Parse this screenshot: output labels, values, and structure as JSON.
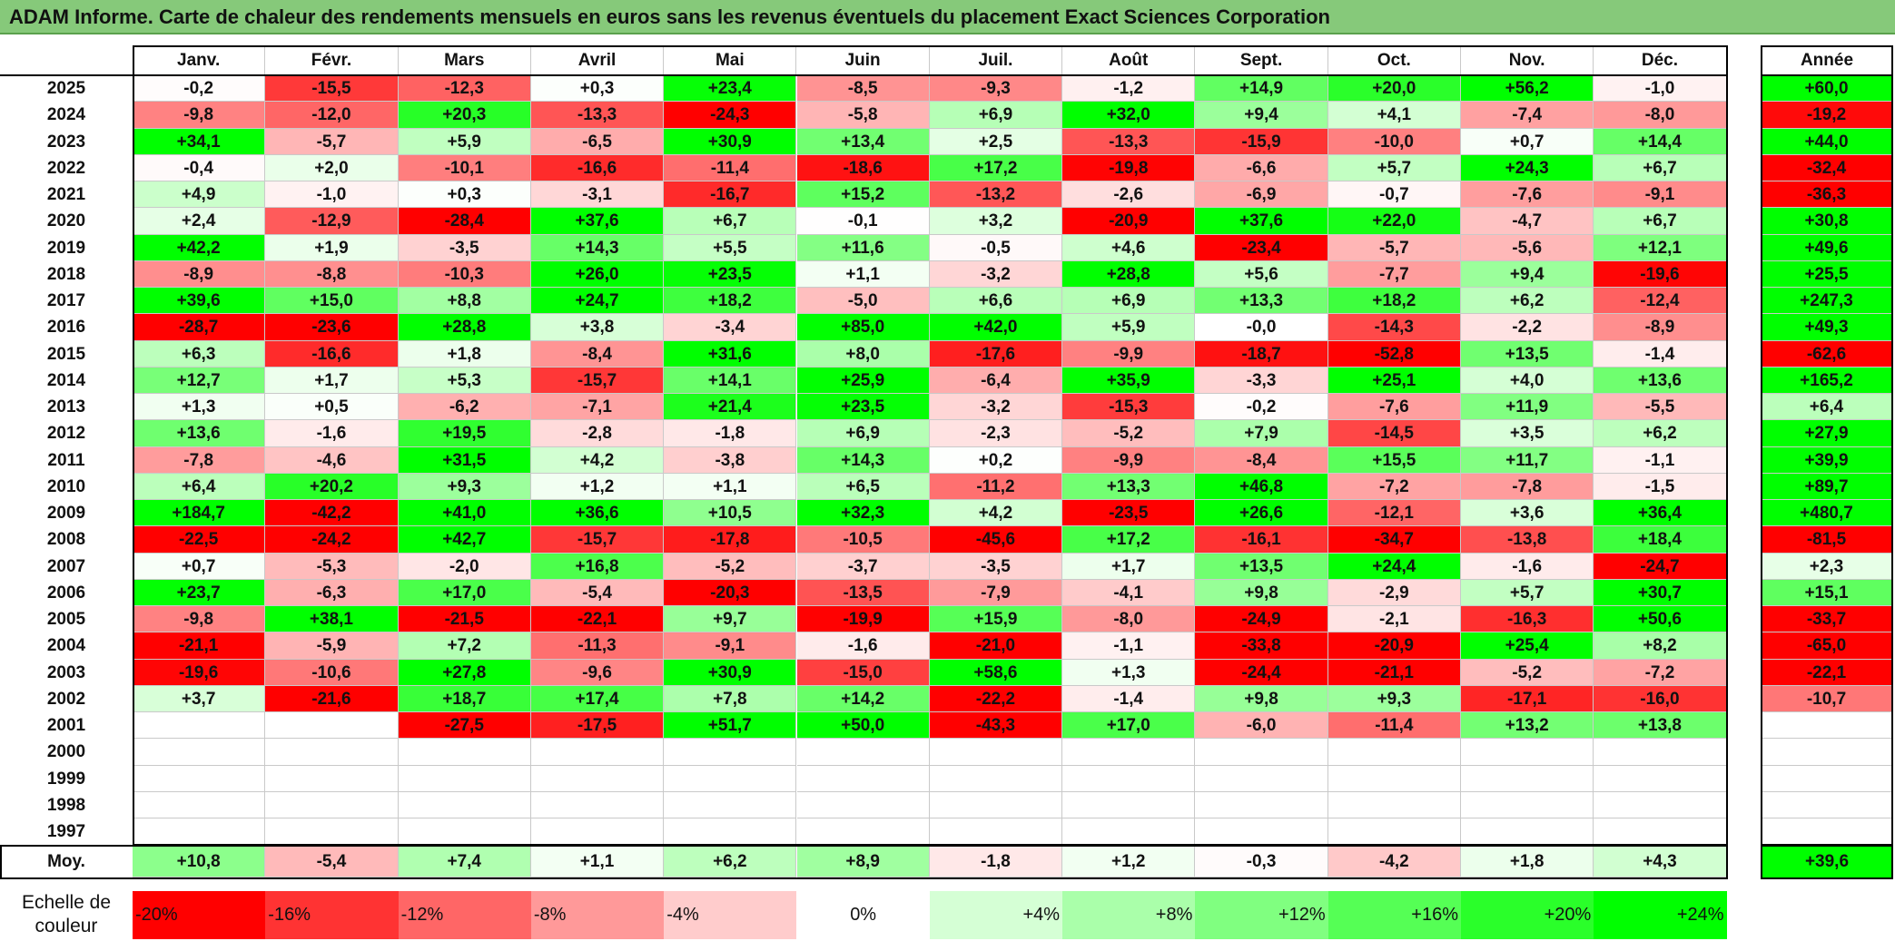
{
  "title": "ADAM Informe. Carte de chaleur des rendements mensuels en euros sans les revenus éventuels du placement Exact Sciences Corporation",
  "months": [
    "Janv.",
    "Févr.",
    "Mars",
    "Avril",
    "Mai",
    "Juin",
    "Juil.",
    "Août",
    "Sept.",
    "Oct.",
    "Nov.",
    "Déc."
  ],
  "annual_header": "Année",
  "average_label": "Moy.",
  "scale_label_line1": "Echelle de",
  "scale_label_line2": "couleur",
  "colors": {
    "negative_max": "#ff0000",
    "positive_max": "#00ff00",
    "zero": "#ffffff",
    "title_bg": "#86c97a"
  },
  "chart_data": {
    "type": "heatmap",
    "title": "ADAM Informe. Carte de chaleur des rendements mensuels en euros sans les revenus éventuels du placement Exact Sciences Corporation",
    "unit": "%",
    "color_range": [
      -20,
      24
    ],
    "rows": [
      {
        "year": "2025",
        "values": [
          "-0,2",
          "-15,5",
          "-12,3",
          "+0,3",
          "+23,4",
          "-8,5",
          "-9,3",
          "-1,2",
          "+14,9",
          "+20,0",
          "+56,2",
          "-1,0"
        ],
        "annual": "+60,0"
      },
      {
        "year": "2024",
        "values": [
          "-9,8",
          "-12,0",
          "+20,3",
          "-13,3",
          "-24,3",
          "-5,8",
          "+6,9",
          "+32,0",
          "+9,4",
          "+4,1",
          "-7,4",
          "-8,0"
        ],
        "annual": "-19,2"
      },
      {
        "year": "2023",
        "values": [
          "+34,1",
          "-5,7",
          "+5,9",
          "-6,5",
          "+30,9",
          "+13,4",
          "+2,5",
          "-13,3",
          "-15,9",
          "-10,0",
          "+0,7",
          "+14,4"
        ],
        "annual": "+44,0"
      },
      {
        "year": "2022",
        "values": [
          "-0,4",
          "+2,0",
          "-10,1",
          "-16,6",
          "-11,4",
          "-18,6",
          "+17,2",
          "-19,8",
          "-6,6",
          "+5,7",
          "+24,3",
          "+6,7"
        ],
        "annual": "-32,4"
      },
      {
        "year": "2021",
        "values": [
          "+4,9",
          "-1,0",
          "+0,3",
          "-3,1",
          "-16,7",
          "+15,2",
          "-13,2",
          "-2,6",
          "-6,9",
          "-0,7",
          "-7,6",
          "-9,1"
        ],
        "annual": "-36,3"
      },
      {
        "year": "2020",
        "values": [
          "+2,4",
          "-12,9",
          "-28,4",
          "+37,6",
          "+6,7",
          "-0,1",
          "+3,2",
          "-20,9",
          "+37,6",
          "+22,0",
          "-4,7",
          "+6,7"
        ],
        "annual": "+30,8"
      },
      {
        "year": "2019",
        "values": [
          "+42,2",
          "+1,9",
          "-3,5",
          "+14,3",
          "+5,5",
          "+11,6",
          "-0,5",
          "+4,6",
          "-23,4",
          "-5,7",
          "-5,6",
          "+12,1"
        ],
        "annual": "+49,6"
      },
      {
        "year": "2018",
        "values": [
          "-8,9",
          "-8,8",
          "-10,3",
          "+26,0",
          "+23,5",
          "+1,1",
          "-3,2",
          "+28,8",
          "+5,6",
          "-7,7",
          "+9,4",
          "-19,6"
        ],
        "annual": "+25,5"
      },
      {
        "year": "2017",
        "values": [
          "+39,6",
          "+15,0",
          "+8,8",
          "+24,7",
          "+18,2",
          "-5,0",
          "+6,6",
          "+6,9",
          "+13,3",
          "+18,2",
          "+6,2",
          "-12,4"
        ],
        "annual": "+247,3"
      },
      {
        "year": "2016",
        "values": [
          "-28,7",
          "-23,6",
          "+28,8",
          "+3,8",
          "-3,4",
          "+85,0",
          "+42,0",
          "+5,9",
          "-0,0",
          "-14,3",
          "-2,2",
          "-8,9"
        ],
        "annual": "+49,3"
      },
      {
        "year": "2015",
        "values": [
          "+6,3",
          "-16,6",
          "+1,8",
          "-8,4",
          "+31,6",
          "+8,0",
          "-17,6",
          "-9,9",
          "-18,7",
          "-52,8",
          "+13,5",
          "-1,4"
        ],
        "annual": "-62,6"
      },
      {
        "year": "2014",
        "values": [
          "+12,7",
          "+1,7",
          "+5,3",
          "-15,7",
          "+14,1",
          "+25,9",
          "-6,4",
          "+35,9",
          "-3,3",
          "+25,1",
          "+4,0",
          "+13,6"
        ],
        "annual": "+165,2"
      },
      {
        "year": "2013",
        "values": [
          "+1,3",
          "+0,5",
          "-6,2",
          "-7,1",
          "+21,4",
          "+23,5",
          "-3,2",
          "-15,3",
          "-0,2",
          "-7,6",
          "+11,9",
          "-5,5"
        ],
        "annual": "+6,4"
      },
      {
        "year": "2012",
        "values": [
          "+13,6",
          "-1,6",
          "+19,5",
          "-2,8",
          "-1,8",
          "+6,9",
          "-2,3",
          "-5,2",
          "+7,9",
          "-14,5",
          "+3,5",
          "+6,2"
        ],
        "annual": "+27,9"
      },
      {
        "year": "2011",
        "values": [
          "-7,8",
          "-4,6",
          "+31,5",
          "+4,2",
          "-3,8",
          "+14,3",
          "+0,2",
          "-9,9",
          "-8,4",
          "+15,5",
          "+11,7",
          "-1,1"
        ],
        "annual": "+39,9"
      },
      {
        "year": "2010",
        "values": [
          "+6,4",
          "+20,2",
          "+9,3",
          "+1,2",
          "+1,1",
          "+6,5",
          "-11,2",
          "+13,3",
          "+46,8",
          "-7,2",
          "-7,8",
          "-1,5"
        ],
        "annual": "+89,7"
      },
      {
        "year": "2009",
        "values": [
          "+184,7",
          "-42,2",
          "+41,0",
          "+36,6",
          "+10,5",
          "+32,3",
          "+4,2",
          "-23,5",
          "+26,6",
          "-12,1",
          "+3,6",
          "+36,4"
        ],
        "annual": "+480,7"
      },
      {
        "year": "2008",
        "values": [
          "-22,5",
          "-24,2",
          "+42,7",
          "-15,7",
          "-17,8",
          "-10,5",
          "-45,6",
          "+17,2",
          "-16,1",
          "-34,7",
          "-13,8",
          "+18,4"
        ],
        "annual": "-81,5"
      },
      {
        "year": "2007",
        "values": [
          "+0,7",
          "-5,3",
          "-2,0",
          "+16,8",
          "-5,2",
          "-3,7",
          "-3,5",
          "+1,7",
          "+13,5",
          "+24,4",
          "-1,6",
          "-24,7"
        ],
        "annual": "+2,3"
      },
      {
        "year": "2006",
        "values": [
          "+23,7",
          "-6,3",
          "+17,0",
          "-5,4",
          "-20,3",
          "-13,5",
          "-7,9",
          "-4,1",
          "+9,8",
          "-2,9",
          "+5,7",
          "+30,7"
        ],
        "annual": "+15,1"
      },
      {
        "year": "2005",
        "values": [
          "-9,8",
          "+38,1",
          "-21,5",
          "-22,1",
          "+9,7",
          "-19,9",
          "+15,9",
          "-8,0",
          "-24,9",
          "-2,1",
          "-16,3",
          "+50,6"
        ],
        "annual": "-33,7"
      },
      {
        "year": "2004",
        "values": [
          "-21,1",
          "-5,9",
          "+7,2",
          "-11,3",
          "-9,1",
          "-1,6",
          "-21,0",
          "-1,1",
          "-33,8",
          "-20,9",
          "+25,4",
          "+8,2"
        ],
        "annual": "-65,0"
      },
      {
        "year": "2003",
        "values": [
          "-19,6",
          "-10,6",
          "+27,8",
          "-9,6",
          "+30,9",
          "-15,0",
          "+58,6",
          "+1,3",
          "-24,4",
          "-21,1",
          "-5,2",
          "-7,2"
        ],
        "annual": "-22,1"
      },
      {
        "year": "2002",
        "values": [
          "+3,7",
          "-21,6",
          "+18,7",
          "+17,4",
          "+7,8",
          "+14,2",
          "-22,2",
          "-1,4",
          "+9,8",
          "+9,3",
          "-17,1",
          "-16,0"
        ],
        "annual": "-10,7"
      },
      {
        "year": "2001",
        "values": [
          "",
          "",
          "-27,5",
          "-17,5",
          "+51,7",
          "+50,0",
          "-43,3",
          "+17,0",
          "-6,0",
          "-11,4",
          "+13,2",
          "+13,8"
        ],
        "annual": ""
      },
      {
        "year": "2000",
        "values": [
          "",
          "",
          "",
          "",
          "",
          "",
          "",
          "",
          "",
          "",
          "",
          ""
        ],
        "annual": ""
      },
      {
        "year": "1999",
        "values": [
          "",
          "",
          "",
          "",
          "",
          "",
          "",
          "",
          "",
          "",
          "",
          ""
        ],
        "annual": ""
      },
      {
        "year": "1998",
        "values": [
          "",
          "",
          "",
          "",
          "",
          "",
          "",
          "",
          "",
          "",
          "",
          ""
        ],
        "annual": ""
      },
      {
        "year": "1997",
        "values": [
          "",
          "",
          "",
          "",
          "",
          "",
          "",
          "",
          "",
          "",
          "",
          ""
        ],
        "annual": ""
      }
    ],
    "average": {
      "values": [
        "+10,8",
        "-5,4",
        "+7,4",
        "+1,1",
        "+6,2",
        "+8,9",
        "-1,8",
        "+1,2",
        "-0,3",
        "-4,2",
        "+1,8",
        "+4,3"
      ],
      "annual": "+39,6"
    },
    "scale": [
      "-20%",
      "-16%",
      "-12%",
      "-8%",
      "-4%",
      "0%",
      "+4%",
      "+8%",
      "+12%",
      "+16%",
      "+20%",
      "+24%"
    ]
  }
}
